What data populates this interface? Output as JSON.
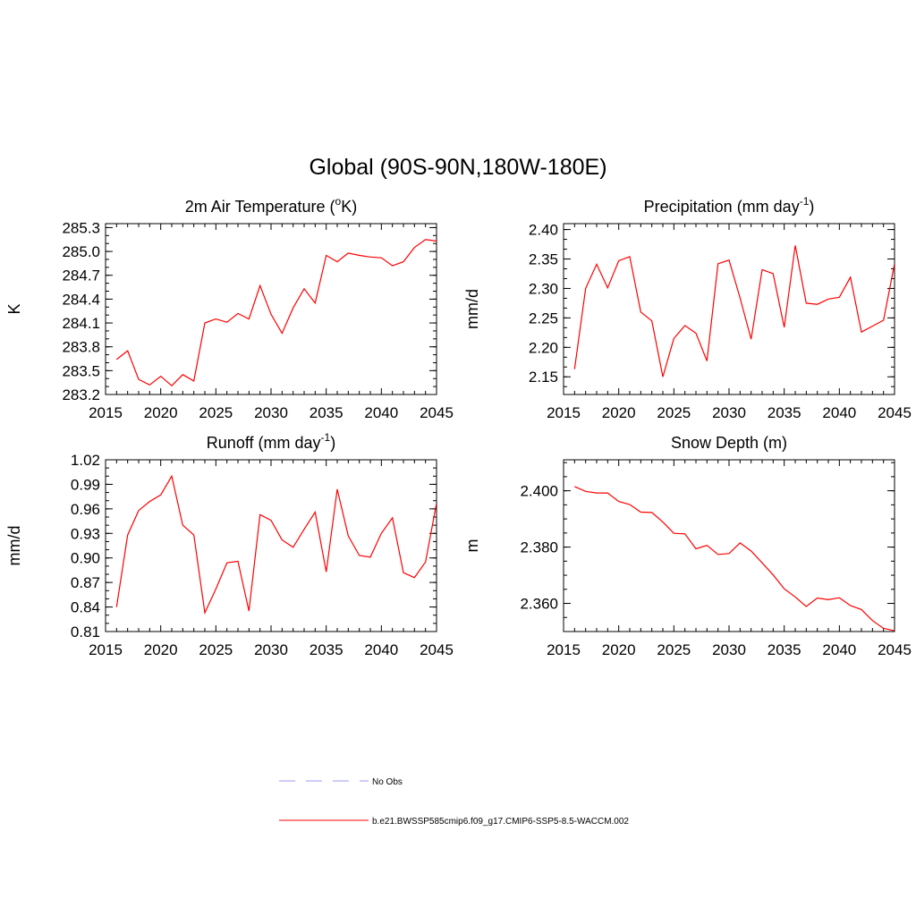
{
  "page": {
    "main_title": "Global (90S-90N,180W-180E)"
  },
  "chart_data": [
    {
      "type": "line",
      "title": "2m Air Temperature",
      "title_unit_pre": "(",
      "title_unit_sup": "o",
      "title_unit_post": "K)",
      "ylabel": "K",
      "xlim": [
        2015,
        2045
      ],
      "ylim": [
        283.2,
        285.35
      ],
      "xticks": [
        2015,
        2020,
        2025,
        2030,
        2035,
        2040,
        2045
      ],
      "yticks": [
        283.2,
        283.5,
        283.8,
        284.1,
        284.4,
        284.7,
        285.0,
        285.3
      ],
      "yticks_text": [
        "283.2",
        "283.5",
        "283.8",
        "284.1",
        "284.4",
        "284.7",
        "285.0",
        "285.3"
      ],
      "x": [
        2016,
        2017,
        2018,
        2019,
        2020,
        2021,
        2022,
        2023,
        2024,
        2025,
        2026,
        2027,
        2028,
        2029,
        2030,
        2031,
        2032,
        2033,
        2034,
        2035,
        2036,
        2037,
        2038,
        2039,
        2040,
        2041,
        2042,
        2043,
        2044,
        2045
      ],
      "series": [
        {
          "color": "#ff0000",
          "values": [
            283.64,
            283.75,
            283.39,
            283.32,
            283.43,
            283.31,
            283.45,
            283.37,
            284.1,
            284.15,
            284.11,
            284.22,
            284.15,
            284.57,
            284.21,
            283.97,
            284.29,
            284.53,
            284.35,
            284.95,
            284.87,
            284.98,
            284.95,
            284.93,
            284.92,
            284.82,
            284.87,
            285.05,
            285.15,
            285.13
          ]
        }
      ]
    },
    {
      "type": "line",
      "title": "Precipitation",
      "title_unit_pre": "(mm day",
      "title_unit_sup": "-1",
      "title_unit_post": ")",
      "ylabel": "mm/d",
      "xlim": [
        2015,
        2045
      ],
      "ylim": [
        2.12,
        2.41
      ],
      "xticks": [
        2015,
        2020,
        2025,
        2030,
        2035,
        2040,
        2045
      ],
      "yticks": [
        2.15,
        2.2,
        2.25,
        2.3,
        2.35,
        2.4
      ],
      "yticks_text": [
        "2.15",
        "2.20",
        "2.25",
        "2.30",
        "2.35",
        "2.40"
      ],
      "x": [
        2016,
        2017,
        2018,
        2019,
        2020,
        2021,
        2022,
        2023,
        2024,
        2025,
        2026,
        2027,
        2028,
        2029,
        2030,
        2031,
        2032,
        2033,
        2034,
        2035,
        2036,
        2037,
        2038,
        2039,
        2040,
        2041,
        2042,
        2043,
        2044,
        2045
      ],
      "series": [
        {
          "color": "#ff0000",
          "values": [
            2.163,
            2.3,
            2.341,
            2.301,
            2.347,
            2.354,
            2.26,
            2.245,
            2.15,
            2.215,
            2.237,
            2.224,
            2.177,
            2.342,
            2.348,
            2.284,
            2.214,
            2.332,
            2.325,
            2.234,
            2.373,
            2.275,
            2.273,
            2.282,
            2.285,
            2.319,
            2.226,
            2.236,
            2.246,
            2.342
          ]
        }
      ]
    },
    {
      "type": "line",
      "title": "Runoff",
      "title_unit_pre": "(mm day",
      "title_unit_sup": "-1",
      "title_unit_post": ")",
      "ylabel": "mm/d",
      "xlim": [
        2015,
        2045
      ],
      "ylim": [
        0.81,
        1.02
      ],
      "xticks": [
        2015,
        2020,
        2025,
        2030,
        2035,
        2040,
        2045
      ],
      "yticks": [
        0.81,
        0.84,
        0.87,
        0.9,
        0.93,
        0.96,
        0.99,
        1.02
      ],
      "yticks_text": [
        "0.81",
        "0.84",
        "0.87",
        "0.90",
        "0.93",
        "0.96",
        "0.99",
        "1.02"
      ],
      "x": [
        2016,
        2017,
        2018,
        2019,
        2020,
        2021,
        2022,
        2023,
        2024,
        2025,
        2026,
        2027,
        2028,
        2029,
        2030,
        2031,
        2032,
        2033,
        2034,
        2035,
        2036,
        2037,
        2038,
        2039,
        2040,
        2041,
        2042,
        2043,
        2044,
        2045
      ],
      "series": [
        {
          "color": "#ff0000",
          "values": [
            0.84,
            0.928,
            0.958,
            0.969,
            0.977,
            1.0,
            0.94,
            0.928,
            0.833,
            0.862,
            0.894,
            0.896,
            0.835,
            0.953,
            0.946,
            0.922,
            0.913,
            0.935,
            0.956,
            0.883,
            0.984,
            0.927,
            0.903,
            0.901,
            0.93,
            0.949,
            0.882,
            0.876,
            0.895,
            0.967
          ]
        }
      ]
    },
    {
      "type": "line",
      "title": "Snow Depth (m)",
      "ylabel": "m",
      "xlim": [
        2015,
        2045
      ],
      "ylim": [
        2.35,
        2.411
      ],
      "xticks": [
        2015,
        2020,
        2025,
        2030,
        2035,
        2040,
        2045
      ],
      "yticks": [
        2.36,
        2.38,
        2.4
      ],
      "yticks_text": [
        "2.360",
        "2.380",
        "2.400"
      ],
      "x": [
        2016,
        2017,
        2018,
        2019,
        2020,
        2021,
        2022,
        2023,
        2024,
        2025,
        2026,
        2027,
        2028,
        2029,
        2030,
        2031,
        2032,
        2033,
        2034,
        2035,
        2036,
        2037,
        2038,
        2039,
        2040,
        2041,
        2042,
        2043,
        2044,
        2045
      ],
      "series": [
        {
          "color": "#ff0000",
          "values": [
            2.4015,
            2.3998,
            2.3992,
            2.3992,
            2.3962,
            2.3951,
            2.3924,
            2.3923,
            2.3889,
            2.3849,
            2.3847,
            2.3794,
            2.3806,
            2.3774,
            2.3777,
            2.3815,
            2.3786,
            2.3744,
            2.3701,
            2.3652,
            2.3623,
            2.3589,
            2.3619,
            2.3613,
            2.362,
            2.3592,
            2.3578,
            2.3539,
            2.3511,
            2.3503
          ]
        }
      ]
    }
  ],
  "legend": {
    "items": [
      {
        "label": "No Obs",
        "color": "#9999ee",
        "dash": "dashed"
      },
      {
        "label": "b.e21.BWSSP585cmip6.f09_g17.CMIP6-SSP5-8.5-WACCM.002",
        "color": "#ff0000",
        "dash": "solid"
      }
    ]
  }
}
